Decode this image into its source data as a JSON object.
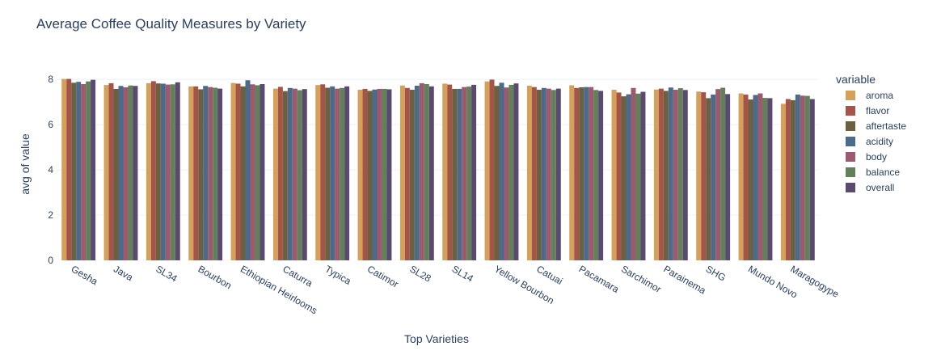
{
  "chart_data": {
    "type": "bar",
    "title": "Average Coffee Quality Measures by Variety",
    "xlabel": "Top Varieties",
    "ylabel": "avg of value",
    "ylim": [
      0,
      8.47
    ],
    "yticks": [
      0,
      2,
      4,
      6,
      8
    ],
    "legend_title": "variable",
    "legend_position": "right",
    "categories": [
      "Gesha",
      "Java",
      "SL34",
      "Bourbon",
      "Ethiopian Heirlooms",
      "Caturra",
      "Typica",
      "Catimor",
      "SL28",
      "SL14",
      "Yellow Bourbon",
      "Catuai",
      "Pacamara",
      "Sarchimor",
      "Parainema",
      "SHG",
      "Mundo Novo",
      "Maragogype"
    ],
    "series": [
      {
        "name": "aroma",
        "color": "#d4a15a",
        "values": [
          8.02,
          7.75,
          7.83,
          7.69,
          7.84,
          7.59,
          7.75,
          7.54,
          7.73,
          7.81,
          7.91,
          7.72,
          7.74,
          7.54,
          7.55,
          7.46,
          7.38,
          6.92
        ]
      },
      {
        "name": "flavor",
        "color": "#a6544a",
        "values": [
          8.02,
          7.83,
          7.92,
          7.69,
          7.81,
          7.67,
          7.78,
          7.58,
          7.62,
          7.77,
          7.99,
          7.66,
          7.62,
          7.42,
          7.59,
          7.43,
          7.33,
          7.13
        ]
      },
      {
        "name": "aftertaste",
        "color": "#6b6140",
        "values": [
          7.85,
          7.58,
          7.82,
          7.56,
          7.69,
          7.48,
          7.63,
          7.49,
          7.54,
          7.58,
          7.71,
          7.54,
          7.65,
          7.25,
          7.49,
          7.17,
          7.11,
          7.08
        ]
      },
      {
        "name": "acidity",
        "color": "#4c6a8a",
        "values": [
          7.89,
          7.71,
          7.81,
          7.71,
          7.96,
          7.62,
          7.69,
          7.55,
          7.72,
          7.58,
          7.85,
          7.62,
          7.66,
          7.34,
          7.64,
          7.33,
          7.31,
          7.33
        ]
      },
      {
        "name": "body",
        "color": "#9c5a6e",
        "values": [
          7.79,
          7.65,
          7.77,
          7.66,
          7.78,
          7.59,
          7.59,
          7.58,
          7.83,
          7.66,
          7.64,
          7.59,
          7.66,
          7.62,
          7.54,
          7.57,
          7.38,
          7.28
        ]
      },
      {
        "name": "balance",
        "color": "#62805a",
        "values": [
          7.91,
          7.73,
          7.78,
          7.63,
          7.74,
          7.52,
          7.62,
          7.58,
          7.79,
          7.68,
          7.76,
          7.53,
          7.53,
          7.37,
          7.61,
          7.63,
          7.18,
          7.27
        ]
      },
      {
        "name": "overall",
        "color": "#5a4a70",
        "values": [
          7.98,
          7.71,
          7.87,
          7.59,
          7.79,
          7.57,
          7.69,
          7.56,
          7.69,
          7.76,
          7.82,
          7.59,
          7.49,
          7.45,
          7.53,
          7.35,
          7.17,
          7.13
        ]
      }
    ]
  }
}
